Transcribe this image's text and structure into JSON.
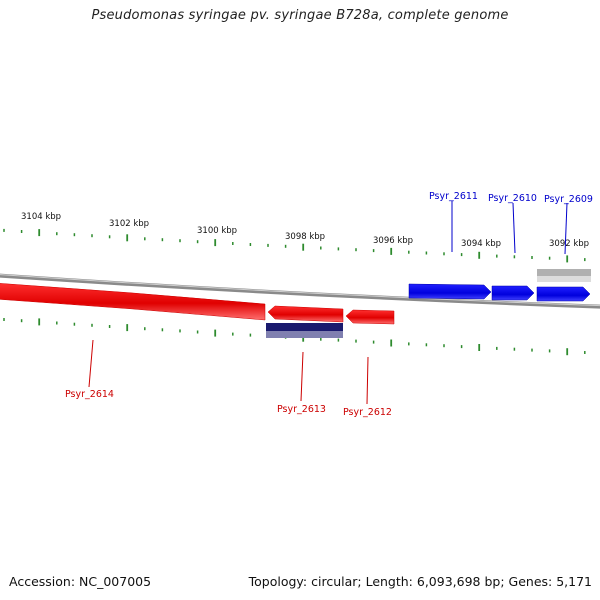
{
  "title": "Pseudomonas syringae pv. syringae B728a, complete genome",
  "footer": {
    "accession": "Accession: NC_007005",
    "summary": "Topology: circular; Length: 6,093,698 bp; Genes: 5,171"
  },
  "colors": {
    "forward": "#0000ee",
    "reverse": "#ee0000",
    "tick": "#2e8b2e",
    "backbone": "#808080",
    "navy": "#1a1a6e",
    "grey_feature": "#b0b0b0"
  },
  "scale_labels": [
    {
      "text": "3104 kbp",
      "kbp": 3104
    },
    {
      "text": "3102 kbp",
      "kbp": 3102
    },
    {
      "text": "3100 kbp",
      "kbp": 3100
    },
    {
      "text": "3098 kbp",
      "kbp": 3098
    },
    {
      "text": "3096 kbp",
      "kbp": 3096
    },
    {
      "text": "3094 kbp",
      "kbp": 3094
    },
    {
      "text": "3092 kbp",
      "kbp": 3092
    }
  ],
  "genes": [
    {
      "name": "Psyr_2609",
      "strand": "forward"
    },
    {
      "name": "Psyr_2610",
      "strand": "forward"
    },
    {
      "name": "Psyr_2611",
      "strand": "forward"
    },
    {
      "name": "Psyr_2612",
      "strand": "reverse"
    },
    {
      "name": "Psyr_2613",
      "strand": "reverse"
    },
    {
      "name": "Psyr_2614",
      "strand": "reverse"
    }
  ]
}
